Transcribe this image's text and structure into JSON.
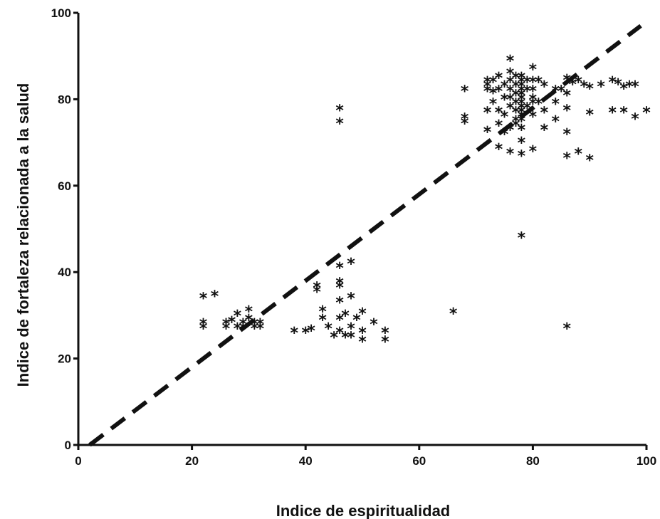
{
  "chart_data": {
    "type": "scatter",
    "xlabel": "Indice de espiritualidad",
    "ylabel": "Indice de fortaleza relacionada a la salud",
    "xlim": [
      0,
      100
    ],
    "ylim": [
      0,
      100
    ],
    "xticks": [
      "0",
      "20",
      "40",
      "60",
      "80",
      "100"
    ],
    "yticks": [
      "0",
      "20",
      "40",
      "60",
      "80",
      "100"
    ],
    "grid": false,
    "marker": "*",
    "trend_line": {
      "style": "dashed",
      "x": [
        2,
        99
      ],
      "y": [
        0,
        97
      ]
    },
    "points": [
      [
        22,
        34
      ],
      [
        24,
        34.5
      ],
      [
        22,
        28
      ],
      [
        22,
        27
      ],
      [
        26,
        28
      ],
      [
        26,
        27
      ],
      [
        27,
        28.5
      ],
      [
        28,
        27
      ],
      [
        28,
        30
      ],
      [
        29,
        28
      ],
      [
        29,
        27
      ],
      [
        30,
        29
      ],
      [
        30,
        31
      ],
      [
        31,
        28
      ],
      [
        31,
        27
      ],
      [
        32,
        28
      ],
      [
        32,
        27
      ],
      [
        38,
        26
      ],
      [
        40,
        26
      ],
      [
        41,
        26.5
      ],
      [
        42,
        36.5
      ],
      [
        42,
        35.5
      ],
      [
        43,
        31
      ],
      [
        43,
        29
      ],
      [
        44,
        27
      ],
      [
        45,
        25
      ],
      [
        46,
        37.5
      ],
      [
        46,
        36.5
      ],
      [
        46,
        33
      ],
      [
        46,
        29
      ],
      [
        46,
        26
      ],
      [
        46,
        41
      ],
      [
        47,
        30
      ],
      [
        47,
        25
      ],
      [
        48,
        42
      ],
      [
        48,
        34
      ],
      [
        48,
        27
      ],
      [
        48,
        25
      ],
      [
        49,
        29
      ],
      [
        50,
        30.5
      ],
      [
        50,
        26
      ],
      [
        50,
        24
      ],
      [
        52,
        28
      ],
      [
        54,
        26
      ],
      [
        54,
        24
      ],
      [
        46,
        77.5
      ],
      [
        46,
        74.5
      ],
      [
        66,
        30.5
      ],
      [
        78,
        48
      ],
      [
        86,
        27
      ],
      [
        68,
        82
      ],
      [
        68,
        75.5
      ],
      [
        68,
        74.5
      ],
      [
        72,
        84
      ],
      [
        72,
        83
      ],
      [
        72,
        82
      ],
      [
        72,
        77
      ],
      [
        72,
        72.5
      ],
      [
        73,
        84
      ],
      [
        73,
        81.5
      ],
      [
        73,
        79
      ],
      [
        74,
        85
      ],
      [
        74,
        82
      ],
      [
        74,
        77
      ],
      [
        74,
        74
      ],
      [
        74,
        68.5
      ],
      [
        75,
        83
      ],
      [
        75,
        80
      ],
      [
        75,
        76
      ],
      [
        75,
        72
      ],
      [
        76,
        89
      ],
      [
        76,
        86
      ],
      [
        76,
        84
      ],
      [
        76,
        82
      ],
      [
        76,
        80
      ],
      [
        76,
        78
      ],
      [
        76,
        73
      ],
      [
        76,
        67.5
      ],
      [
        77,
        85
      ],
      [
        77,
        83
      ],
      [
        77,
        81
      ],
      [
        77,
        79
      ],
      [
        77,
        77
      ],
      [
        77,
        75
      ],
      [
        77,
        74
      ],
      [
        78,
        85
      ],
      [
        78,
        84
      ],
      [
        78,
        83
      ],
      [
        78,
        82
      ],
      [
        78,
        81
      ],
      [
        78,
        80
      ],
      [
        78,
        79
      ],
      [
        78,
        78
      ],
      [
        78,
        77
      ],
      [
        78,
        76
      ],
      [
        78,
        75
      ],
      [
        78,
        73
      ],
      [
        78,
        70
      ],
      [
        78,
        67
      ],
      [
        79,
        84
      ],
      [
        79,
        82
      ],
      [
        79,
        78
      ],
      [
        80,
        87
      ],
      [
        80,
        84
      ],
      [
        80,
        82
      ],
      [
        80,
        80
      ],
      [
        80,
        79
      ],
      [
        80,
        76
      ],
      [
        80,
        68
      ],
      [
        81,
        84
      ],
      [
        81,
        79
      ],
      [
        82,
        83
      ],
      [
        82,
        77
      ],
      [
        82,
        73
      ],
      [
        84,
        82
      ],
      [
        84,
        79
      ],
      [
        84,
        75
      ],
      [
        85,
        82
      ],
      [
        86,
        84.5
      ],
      [
        86,
        81
      ],
      [
        86,
        77.5
      ],
      [
        86,
        72
      ],
      [
        86,
        66.5
      ],
      [
        87,
        83.5
      ],
      [
        88,
        84
      ],
      [
        88,
        67.5
      ],
      [
        89,
        83
      ],
      [
        90,
        82.5
      ],
      [
        90,
        76.5
      ],
      [
        90,
        66
      ],
      [
        92,
        83
      ],
      [
        94,
        84
      ],
      [
        94,
        77
      ],
      [
        95,
        83.5
      ],
      [
        96,
        82.5
      ],
      [
        96,
        77
      ],
      [
        97,
        83
      ],
      [
        98,
        83
      ],
      [
        98,
        75.5
      ],
      [
        100,
        77
      ]
    ]
  }
}
